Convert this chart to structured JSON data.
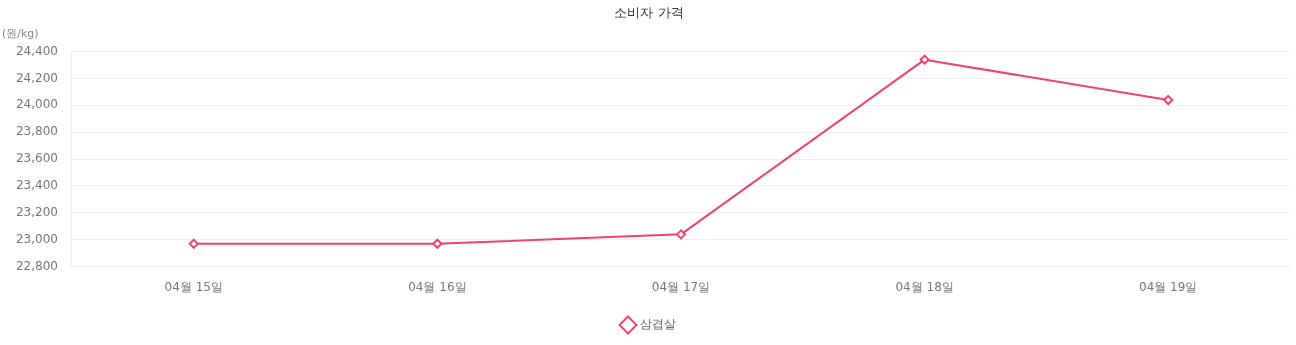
{
  "chart_data": {
    "type": "line",
    "title": "소비자 가격",
    "ylabel": "(원/kg)",
    "categories": [
      "04월 15일",
      "04월 16일",
      "04월 17일",
      "04월 18일",
      "04월 19일"
    ],
    "series": [
      {
        "name": "삼겹살",
        "color": "#ee4272",
        "values": [
          22970,
          22970,
          23040,
          24340,
          24040
        ]
      }
    ],
    "ylim": [
      22800,
      24400
    ],
    "yticks": [
      {
        "value": 22800,
        "label": "22,800"
      },
      {
        "value": 23000,
        "label": "23,000"
      },
      {
        "value": 23200,
        "label": "23,200"
      },
      {
        "value": 23400,
        "label": "23,400"
      },
      {
        "value": 23600,
        "label": "23,600"
      },
      {
        "value": 23800,
        "label": "23,800"
      },
      {
        "value": 24000,
        "label": "24,000"
      },
      {
        "value": 24200,
        "label": "24,200"
      },
      {
        "value": 24400,
        "label": "24,400"
      }
    ],
    "grid": "y",
    "legend": "bottom",
    "marker": "diamond",
    "line_style": "solid"
  }
}
